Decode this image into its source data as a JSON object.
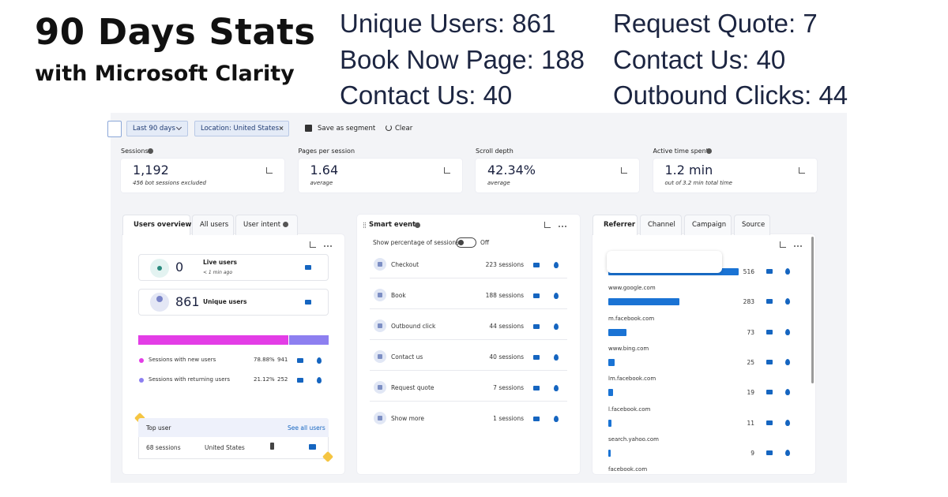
{
  "header": {
    "title": "90 Days Stats",
    "subtitle": "with Microsoft Clarity",
    "stats": [
      [
        "Unique Users: 861",
        "Book Now Page: 188",
        "Contact Us: 40"
      ],
      [
        "Request Quote: 7",
        "Contact Us: 40",
        "Outbound Clicks: 44"
      ]
    ]
  },
  "toolbar": {
    "filters": [
      "Last 90 days",
      "Location: United States"
    ],
    "actions": [
      "Save as segment",
      "Clear"
    ]
  },
  "metrics": [
    {
      "label": "Sessions",
      "value": "1,192",
      "note": "456 bot sessions excluded"
    },
    {
      "label": "Pages per session",
      "value": "1.64",
      "note": "average"
    },
    {
      "label": "Scroll depth",
      "value": "42.34%",
      "note": "average"
    },
    {
      "label": "Active time spent",
      "value": "1.2 min",
      "note": "out of 3.2 min total time"
    }
  ],
  "users_panel": {
    "tabs": [
      "Users overview",
      "All users",
      "User intent"
    ],
    "live": {
      "value": "0",
      "label": "Live users",
      "note": "< 1 min ago"
    },
    "unique": {
      "value": "861",
      "label": "Unique users"
    },
    "rows": [
      {
        "label": "Sessions with new users",
        "share": {
          "value": 78.88,
          "label": "78.88%"
        },
        "sessions": 941
      },
      {
        "label": "Sessions with returning users",
        "share": {
          "value": 21.12,
          "label": "21.12%"
        },
        "sessions": 252
      }
    ],
    "top_user": {
      "title": "Top user",
      "link": "See all users",
      "sessions": "68 sessions",
      "country": "United States"
    }
  },
  "smart_events": {
    "title": "Smart events",
    "toggle_label": "Show percentage of sessions",
    "toggle_state": "Off",
    "events": [
      {
        "name": "Checkout",
        "sessions": "223 sessions"
      },
      {
        "name": "Book",
        "sessions": "188 sessions"
      },
      {
        "name": "Outbound click",
        "sessions": "44 sessions"
      },
      {
        "name": "Contact us",
        "sessions": "40 sessions"
      },
      {
        "name": "Request quote",
        "sessions": "7 sessions"
      },
      {
        "name": "Show more",
        "sessions": "1 sessions"
      }
    ]
  },
  "referrer_panel": {
    "tabs": [
      "Referrer",
      "Channel",
      "Campaign",
      "Source"
    ],
    "rows": [
      {
        "name": null,
        "value": 516
      },
      {
        "name": "www.google.com",
        "value": 283
      },
      {
        "name": "m.facebook.com",
        "value": 73
      },
      {
        "name": "www.bing.com",
        "value": 25
      },
      {
        "name": "lm.facebook.com",
        "value": 19
      },
      {
        "name": "l.facebook.com",
        "value": 11
      },
      {
        "name": "search.yahoo.com",
        "value": 9
      },
      {
        "name": "facebook.com",
        "value": null
      }
    ]
  }
}
